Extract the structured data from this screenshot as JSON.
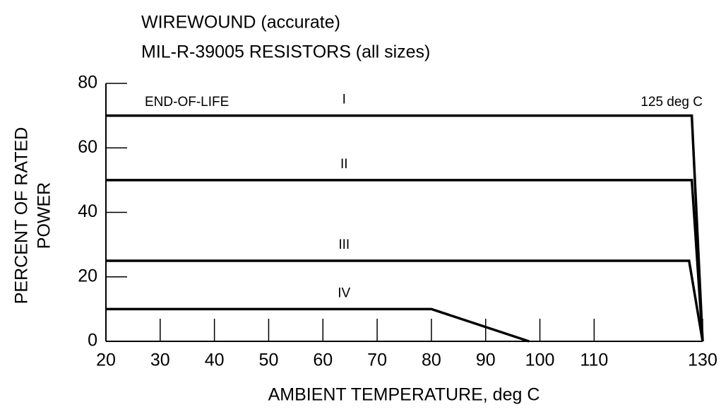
{
  "chart_data": {
    "type": "line",
    "title": "WIREWOUND (accurate)",
    "subtitle": "MIL-R-39005 RESISTORS (all sizes)",
    "ylabel": [
      "PERCENT OF RATED",
      "POWER"
    ],
    "xlabel": "AMBIENT TEMPERATURE, deg C",
    "annotations": [
      "END-OF-LIFE",
      "125 deg C"
    ],
    "xlim": [
      20,
      130
    ],
    "xticks": [
      20,
      30,
      40,
      50,
      60,
      70,
      80,
      90,
      100,
      110,
      130
    ],
    "ylim": [
      0,
      80
    ],
    "yticks": [
      0,
      20,
      40,
      60,
      80
    ],
    "series": [
      {
        "name": "I",
        "color": "#000000",
        "x": [
          20,
          128,
          130
        ],
        "values": [
          70,
          70,
          0
        ]
      },
      {
        "name": "II",
        "color": "#000000",
        "x": [
          20,
          128,
          130
        ],
        "values": [
          50,
          50,
          0
        ]
      },
      {
        "name": "III",
        "color": "#000000",
        "x": [
          20,
          127.5,
          130
        ],
        "values": [
          25,
          25,
          0
        ]
      },
      {
        "name": "IV",
        "color": "#000000",
        "x": [
          20,
          80,
          98
        ],
        "values": [
          10,
          10,
          0
        ]
      }
    ]
  }
}
